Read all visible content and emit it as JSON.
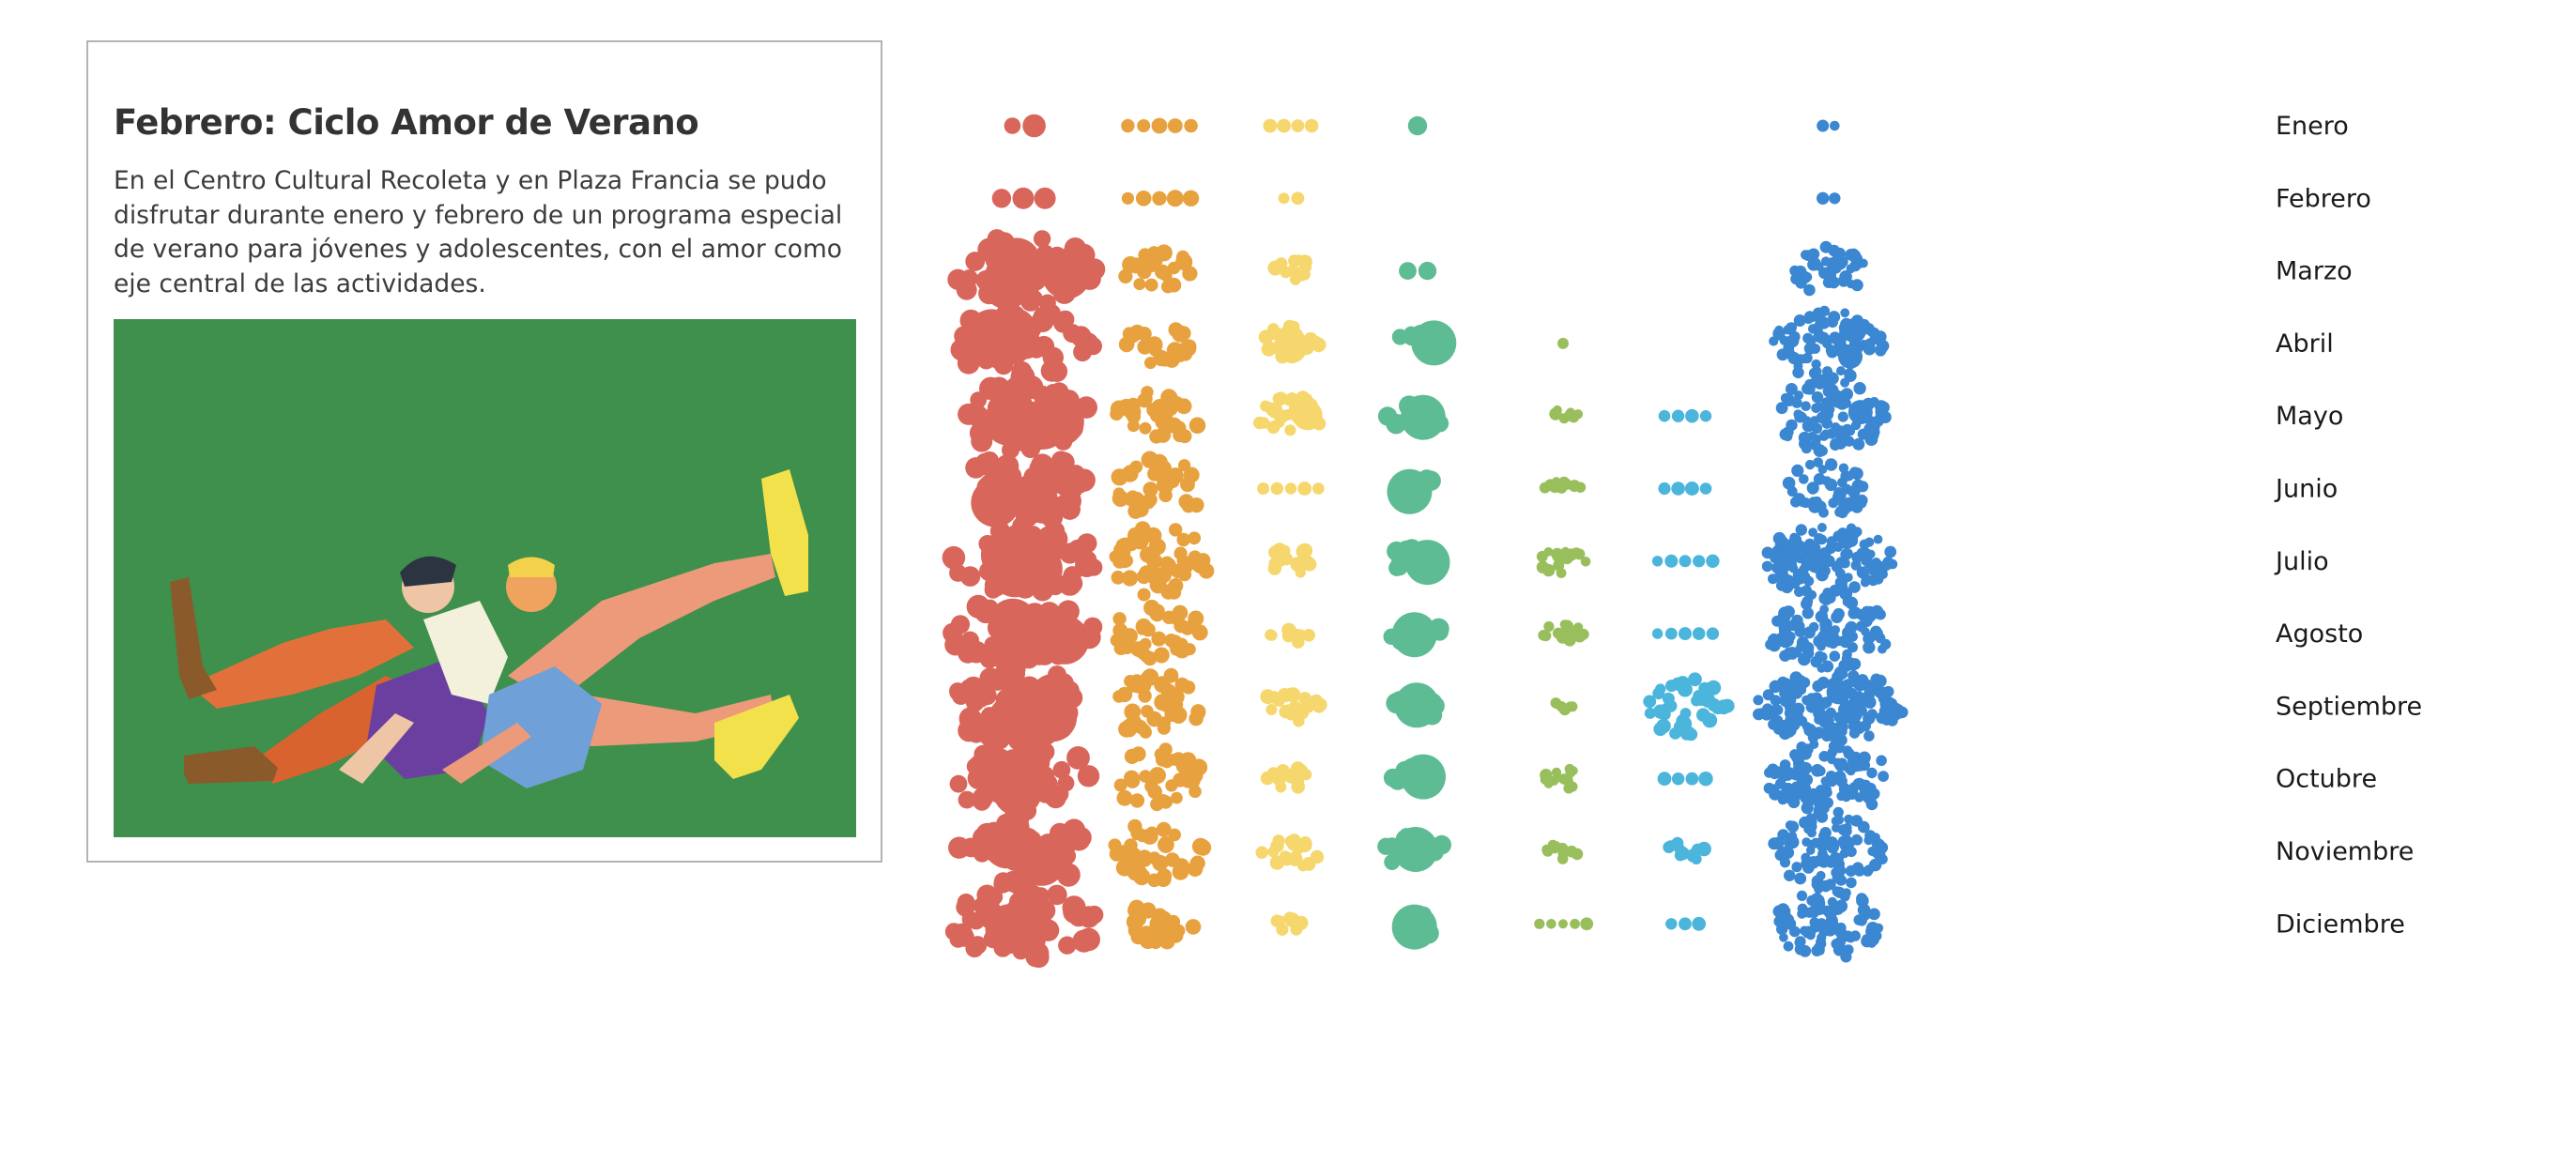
{
  "card": {
    "title": "Febrero: Ciclo Amor de Verano",
    "description": "En el Centro Cultural Recoleta y en Plaza Francia se pudo disfrutar durante enero y febrero de un programa especial de verano para jóvenes y adolescentes, con el amor como eje central de las actividades."
  },
  "chart_data": {
    "type": "scatter",
    "title": "",
    "xlabel": "",
    "ylabel": "",
    "categories": [
      "Enero",
      "Febrero",
      "Marzo",
      "Abril",
      "Mayo",
      "Junio",
      "Julio",
      "Agosto",
      "Septiembre",
      "Octubre",
      "Noviembre",
      "Diciembre"
    ],
    "columns": [
      {
        "color": "#d9665b",
        "counts": [
          2,
          3,
          45,
          42,
          40,
          38,
          48,
          44,
          50,
          42,
          38,
          48
        ],
        "big": [
          0,
          0,
          4,
          4,
          4,
          3,
          5,
          4,
          4,
          3,
          3,
          2
        ]
      },
      {
        "color": "#e8a13f",
        "counts": [
          5,
          5,
          20,
          20,
          30,
          35,
          45,
          35,
          40,
          35,
          35,
          22
        ],
        "big": [
          0,
          0,
          0,
          0,
          0,
          0,
          0,
          0,
          0,
          0,
          0,
          0
        ]
      },
      {
        "color": "#f5d76e",
        "counts": [
          4,
          2,
          12,
          20,
          24,
          5,
          14,
          10,
          20,
          12,
          18,
          8
        ],
        "big": [
          0,
          0,
          0,
          2,
          2,
          0,
          0,
          0,
          0,
          0,
          0,
          0
        ]
      },
      {
        "color": "#5ebc94",
        "counts": [
          1,
          0,
          2,
          8,
          10,
          8,
          10,
          8,
          8,
          8,
          12,
          9
        ],
        "big": [
          0,
          0,
          0,
          1,
          1,
          1,
          1,
          1,
          1,
          1,
          1,
          1
        ]
      },
      {
        "color": "#99bf5d",
        "counts": [
          0,
          0,
          0,
          1,
          8,
          10,
          16,
          13,
          6,
          13,
          10,
          5
        ],
        "big": [
          0,
          0,
          0,
          0,
          0,
          0,
          0,
          0,
          0,
          0,
          0,
          0
        ]
      },
      {
        "color": "#4cb5dc",
        "counts": [
          0,
          0,
          0,
          0,
          4,
          4,
          5,
          5,
          40,
          4,
          10,
          3
        ],
        "big": [
          0,
          0,
          0,
          0,
          0,
          0,
          0,
          0,
          0,
          0,
          0,
          0
        ]
      },
      {
        "color": "#3b87d1",
        "counts": [
          2,
          2,
          40,
          90,
          95,
          50,
          120,
          110,
          160,
          110,
          100,
          85
        ],
        "big": [
          0,
          0,
          0,
          2,
          1,
          0,
          1,
          0,
          2,
          0,
          0,
          0
        ]
      }
    ]
  }
}
